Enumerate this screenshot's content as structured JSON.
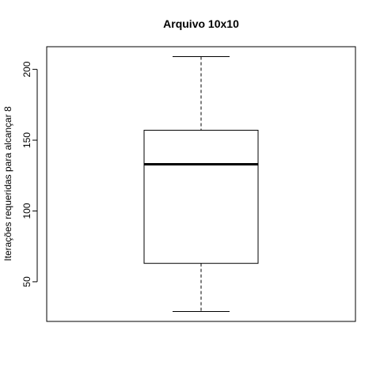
{
  "chart_data": {
    "type": "box",
    "title": "Arquivo 10x10",
    "xlabel": "",
    "ylabel": "Iterações requeridas para alcançar 8",
    "ylim": [
      22,
      216
    ],
    "yticks": [
      50,
      100,
      150,
      200
    ],
    "grid": false,
    "box": {
      "whisker_low": 29,
      "q1": 63,
      "median": 133,
      "q3": 157,
      "whisker_high": 209
    }
  }
}
